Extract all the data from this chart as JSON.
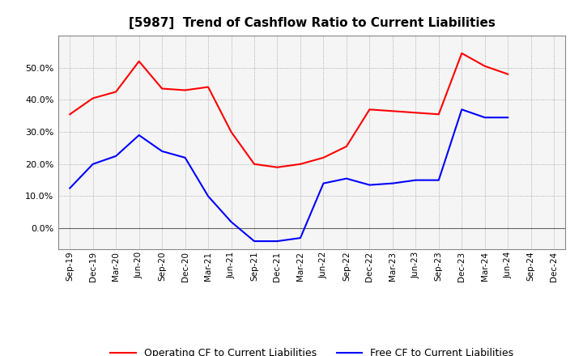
{
  "title": "[5987]  Trend of Cashflow Ratio to Current Liabilities",
  "x_labels": [
    "Sep-19",
    "Dec-19",
    "Mar-20",
    "Jun-20",
    "Sep-20",
    "Dec-20",
    "Mar-21",
    "Jun-21",
    "Sep-21",
    "Dec-21",
    "Mar-22",
    "Jun-22",
    "Sep-22",
    "Dec-22",
    "Mar-23",
    "Jun-23",
    "Sep-23",
    "Dec-23",
    "Mar-24",
    "Jun-24",
    "Sep-24",
    "Dec-24"
  ],
  "operating_cf": [
    0.355,
    0.405,
    0.425,
    0.52,
    0.435,
    0.43,
    0.44,
    0.3,
    0.2,
    0.19,
    0.2,
    0.22,
    0.255,
    0.37,
    0.365,
    0.36,
    0.355,
    0.545,
    0.505,
    0.48,
    null,
    null
  ],
  "free_cf": [
    0.125,
    0.2,
    0.225,
    0.29,
    0.24,
    0.22,
    0.1,
    0.02,
    -0.04,
    -0.04,
    -0.03,
    0.14,
    0.155,
    0.135,
    0.14,
    0.15,
    0.15,
    0.37,
    0.345,
    0.345,
    null,
    null
  ],
  "operating_color": "#ff0000",
  "free_color": "#0000ff",
  "ylim": [
    -0.065,
    0.6
  ],
  "yticks": [
    0.0,
    0.1,
    0.2,
    0.3,
    0.4,
    0.5
  ],
  "background_color": "#ffffff",
  "plot_bg_color": "#f5f5f5",
  "grid_color": "#999999",
  "legend_op": "Operating CF to Current Liabilities",
  "legend_free": "Free CF to Current Liabilities",
  "title_fontsize": 11,
  "tick_fontsize": 7.5,
  "legend_fontsize": 9
}
